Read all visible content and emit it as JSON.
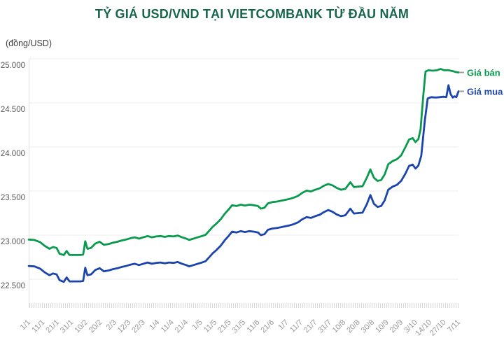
{
  "header": {
    "title": "TỶ GIÁ USD/VND TẠI VIETCOMBANK TỪ ĐẦU NĂM",
    "unit_label": "(đồng/USD)"
  },
  "colors": {
    "title_green": "#17654d",
    "sell_green": "#0a9a4d",
    "buy_blue": "#1c44ad",
    "grid_line": "#ececec",
    "axis_line": "#e0e0e0",
    "hatch": "#d9d9d9",
    "y_tick_text": "#595959",
    "x_tick_text": "#999999",
    "legend_dash": "#9b9b9b"
  },
  "chart_data": {
    "type": "line",
    "title": "TỶ GIÁ USD/VND TẠI VIETCOMBANK TỪ ĐẦU NĂM",
    "ylabel": "(đồng/USD)",
    "ylim": [
      22200,
      25000
    ],
    "grid": "horizontal",
    "legend_position": "right-of-line-ends",
    "y_ticks": [
      22500,
      23000,
      23500,
      24000,
      24500,
      25000
    ],
    "y_tick_labels": [
      "22.500",
      "23.000",
      "23.500",
      "24.000",
      "24.500",
      "25.000"
    ],
    "x_tick_labels": [
      "1/1",
      "11/1",
      "21/1",
      "31/1",
      "10/2",
      "20/2",
      "2/3",
      "12/3",
      "22/3",
      "1/4",
      "11/4",
      "21/4",
      "1/5",
      "11/5",
      "21/5",
      "31/5",
      "11/6",
      "21/6",
      "1/7",
      "11/7",
      "21/7",
      "31/7",
      "10/8",
      "20/8",
      "30/8",
      "10/9",
      "20/9",
      "3/10",
      "14/10",
      "27/10",
      "7/11"
    ],
    "series": [
      {
        "name": "Giá bán",
        "color": "#0a9a4d",
        "points": [
          [
            0,
            22950
          ],
          [
            0.4,
            22945
          ],
          [
            0.8,
            22920
          ],
          [
            1.1,
            22880
          ],
          [
            1.45,
            22845
          ],
          [
            1.7,
            22865
          ],
          [
            1.95,
            22855
          ],
          [
            2.15,
            22790
          ],
          [
            2.45,
            22775
          ],
          [
            2.65,
            22820
          ],
          [
            2.85,
            22775
          ],
          [
            3.6,
            22775
          ],
          [
            3.8,
            22780
          ],
          [
            3.95,
            22930
          ],
          [
            4.1,
            22845
          ],
          [
            4.35,
            22855
          ],
          [
            4.65,
            22905
          ],
          [
            4.95,
            22925
          ],
          [
            5.25,
            22890
          ],
          [
            5.6,
            22900
          ],
          [
            5.9,
            22915
          ],
          [
            6.2,
            22925
          ],
          [
            6.5,
            22940
          ],
          [
            6.8,
            22950
          ],
          [
            7.1,
            22965
          ],
          [
            7.4,
            22975
          ],
          [
            7.7,
            22960
          ],
          [
            8.0,
            22975
          ],
          [
            8.3,
            22990
          ],
          [
            8.6,
            22975
          ],
          [
            8.9,
            22985
          ],
          [
            9.2,
            22990
          ],
          [
            9.5,
            22980
          ],
          [
            9.8,
            22990
          ],
          [
            10.1,
            22985
          ],
          [
            10.4,
            22995
          ],
          [
            10.7,
            22975
          ],
          [
            11.0,
            22960
          ],
          [
            11.2,
            22945
          ],
          [
            11.5,
            22960
          ],
          [
            11.8,
            22975
          ],
          [
            12.1,
            22990
          ],
          [
            12.35,
            23005
          ],
          [
            12.6,
            23050
          ],
          [
            12.85,
            23095
          ],
          [
            13.1,
            23130
          ],
          [
            13.4,
            23180
          ],
          [
            13.7,
            23245
          ],
          [
            13.95,
            23290
          ],
          [
            14.2,
            23340
          ],
          [
            14.5,
            23330
          ],
          [
            14.8,
            23345
          ],
          [
            15.1,
            23335
          ],
          [
            15.4,
            23345
          ],
          [
            15.7,
            23340
          ],
          [
            16.0,
            23330
          ],
          [
            16.2,
            23300
          ],
          [
            16.45,
            23310
          ],
          [
            16.7,
            23360
          ],
          [
            17.0,
            23375
          ],
          [
            17.3,
            23380
          ],
          [
            17.6,
            23390
          ],
          [
            17.9,
            23400
          ],
          [
            18.2,
            23410
          ],
          [
            18.5,
            23425
          ],
          [
            18.8,
            23445
          ],
          [
            19.1,
            23480
          ],
          [
            19.4,
            23505
          ],
          [
            19.7,
            23495
          ],
          [
            20.0,
            23515
          ],
          [
            20.3,
            23530
          ],
          [
            20.6,
            23560
          ],
          [
            20.9,
            23580
          ],
          [
            21.2,
            23565
          ],
          [
            21.5,
            23535
          ],
          [
            21.8,
            23515
          ],
          [
            22.1,
            23525
          ],
          [
            22.45,
            23600
          ],
          [
            22.7,
            23545
          ],
          [
            23.0,
            23550
          ],
          [
            23.3,
            23555
          ],
          [
            23.6,
            23650
          ],
          [
            23.85,
            23745
          ],
          [
            24.1,
            23650
          ],
          [
            24.35,
            23615
          ],
          [
            24.6,
            23625
          ],
          [
            24.85,
            23690
          ],
          [
            25.1,
            23805
          ],
          [
            25.4,
            23840
          ],
          [
            25.7,
            23860
          ],
          [
            26.0,
            23905
          ],
          [
            26.3,
            24000
          ],
          [
            26.55,
            24085
          ],
          [
            26.8,
            24100
          ],
          [
            27.0,
            24055
          ],
          [
            27.2,
            24090
          ],
          [
            27.35,
            24200
          ],
          [
            27.55,
            24600
          ],
          [
            27.7,
            24855
          ],
          [
            27.9,
            24870
          ],
          [
            28.2,
            24865
          ],
          [
            28.5,
            24870
          ],
          [
            28.75,
            24885
          ],
          [
            29.0,
            24870
          ],
          [
            29.3,
            24870
          ],
          [
            29.6,
            24860
          ],
          [
            29.8,
            24850
          ],
          [
            30,
            24845
          ]
        ]
      },
      {
        "name": "Giá mua",
        "color": "#1c44ad",
        "points": [
          [
            0,
            22650
          ],
          [
            0.4,
            22645
          ],
          [
            0.8,
            22620
          ],
          [
            1.1,
            22580
          ],
          [
            1.45,
            22545
          ],
          [
            1.7,
            22565
          ],
          [
            1.95,
            22555
          ],
          [
            2.15,
            22490
          ],
          [
            2.45,
            22470
          ],
          [
            2.65,
            22520
          ],
          [
            2.85,
            22475
          ],
          [
            3.6,
            22475
          ],
          [
            3.8,
            22480
          ],
          [
            3.95,
            22630
          ],
          [
            4.1,
            22545
          ],
          [
            4.35,
            22555
          ],
          [
            4.65,
            22605
          ],
          [
            4.95,
            22625
          ],
          [
            5.25,
            22590
          ],
          [
            5.6,
            22600
          ],
          [
            5.9,
            22615
          ],
          [
            6.2,
            22625
          ],
          [
            6.5,
            22640
          ],
          [
            6.8,
            22650
          ],
          [
            7.1,
            22665
          ],
          [
            7.4,
            22675
          ],
          [
            7.7,
            22660
          ],
          [
            8.0,
            22675
          ],
          [
            8.3,
            22690
          ],
          [
            8.6,
            22675
          ],
          [
            8.9,
            22685
          ],
          [
            9.2,
            22690
          ],
          [
            9.5,
            22680
          ],
          [
            9.8,
            22690
          ],
          [
            10.1,
            22685
          ],
          [
            10.4,
            22695
          ],
          [
            10.7,
            22675
          ],
          [
            11.0,
            22660
          ],
          [
            11.2,
            22645
          ],
          [
            11.5,
            22660
          ],
          [
            11.8,
            22675
          ],
          [
            12.1,
            22690
          ],
          [
            12.35,
            22705
          ],
          [
            12.6,
            22750
          ],
          [
            12.85,
            22795
          ],
          [
            13.1,
            22830
          ],
          [
            13.4,
            22880
          ],
          [
            13.7,
            22945
          ],
          [
            13.95,
            22990
          ],
          [
            14.2,
            23040
          ],
          [
            14.5,
            23030
          ],
          [
            14.8,
            23045
          ],
          [
            15.1,
            23035
          ],
          [
            15.4,
            23045
          ],
          [
            15.7,
            23040
          ],
          [
            16.0,
            23030
          ],
          [
            16.2,
            23000
          ],
          [
            16.45,
            23010
          ],
          [
            16.7,
            23060
          ],
          [
            17.0,
            23075
          ],
          [
            17.3,
            23080
          ],
          [
            17.6,
            23090
          ],
          [
            17.9,
            23100
          ],
          [
            18.2,
            23110
          ],
          [
            18.5,
            23125
          ],
          [
            18.8,
            23145
          ],
          [
            19.1,
            23180
          ],
          [
            19.4,
            23205
          ],
          [
            19.7,
            23195
          ],
          [
            20.0,
            23215
          ],
          [
            20.3,
            23230
          ],
          [
            20.6,
            23260
          ],
          [
            20.9,
            23285
          ],
          [
            21.2,
            23265
          ],
          [
            21.5,
            23235
          ],
          [
            21.8,
            23215
          ],
          [
            22.1,
            23225
          ],
          [
            22.45,
            23300
          ],
          [
            22.7,
            23245
          ],
          [
            23.0,
            23250
          ],
          [
            23.3,
            23255
          ],
          [
            23.6,
            23350
          ],
          [
            23.85,
            23455
          ],
          [
            24.1,
            23355
          ],
          [
            24.35,
            23320
          ],
          [
            24.6,
            23330
          ],
          [
            24.85,
            23395
          ],
          [
            25.1,
            23515
          ],
          [
            25.4,
            23550
          ],
          [
            25.7,
            23570
          ],
          [
            26.0,
            23615
          ],
          [
            26.3,
            23700
          ],
          [
            26.55,
            23785
          ],
          [
            26.8,
            23800
          ],
          [
            27.0,
            23755
          ],
          [
            27.2,
            23790
          ],
          [
            27.4,
            23900
          ],
          [
            27.65,
            24300
          ],
          [
            27.85,
            24550
          ],
          [
            28.1,
            24565
          ],
          [
            28.4,
            24560
          ],
          [
            28.7,
            24565
          ],
          [
            28.95,
            24570
          ],
          [
            29.15,
            24565
          ],
          [
            29.3,
            24700
          ],
          [
            29.45,
            24600
          ],
          [
            29.6,
            24560
          ],
          [
            29.72,
            24575
          ],
          [
            29.85,
            24565
          ],
          [
            30,
            24630
          ]
        ]
      }
    ]
  }
}
